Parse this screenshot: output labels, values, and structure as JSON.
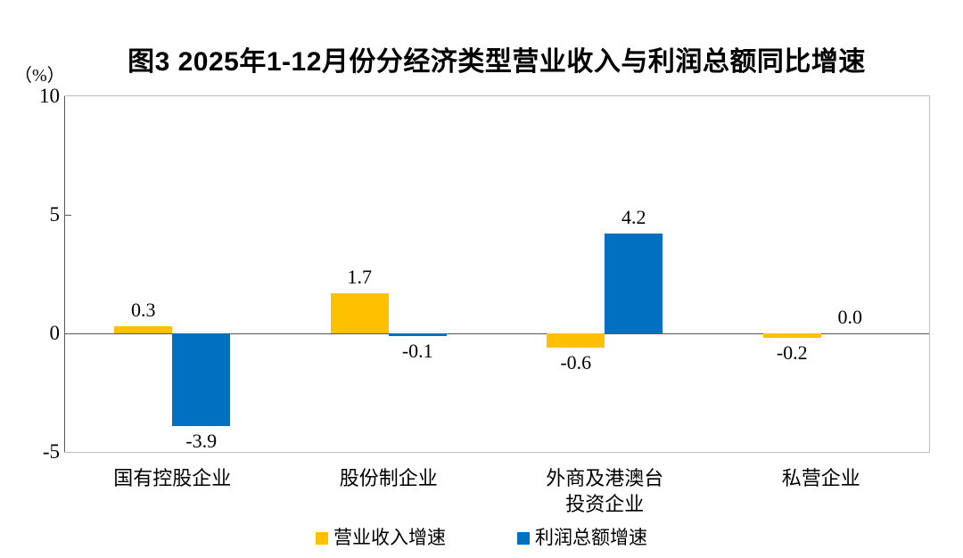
{
  "title": "图3  2025年1-12月份分经济类型营业收入与利润总额同比增速",
  "unit_label": "（%）",
  "chart_data": {
    "type": "bar",
    "categories": [
      "国有控股企业",
      "股份制企业",
      "外商及港澳台\n投资企业",
      "私营企业"
    ],
    "series": [
      {
        "name": "营业收入增速",
        "color": "#FFC000",
        "values": [
          0.3,
          1.7,
          -0.6,
          -0.2
        ]
      },
      {
        "name": "利润总额增速",
        "color": "#0070C0",
        "values": [
          -3.9,
          -0.1,
          4.2,
          0.0
        ]
      }
    ],
    "value_labels": [
      [
        "0.3",
        "1.7",
        "-0.6",
        "-0.2"
      ],
      [
        "-3.9",
        "-0.1",
        "4.2",
        "0.0"
      ]
    ],
    "ylabel": "（%）",
    "ylim": [
      -5,
      10
    ],
    "yticks": [
      10,
      5,
      0,
      -5
    ],
    "grid": false,
    "legend_position": "bottom"
  },
  "colors": {
    "bar_yellow": "#FFC000",
    "bar_blue": "#0070C0",
    "axis_line": "#595959",
    "plot_border": "#BFBFBF",
    "text": "#000000",
    "background": "#FFFFFF"
  }
}
